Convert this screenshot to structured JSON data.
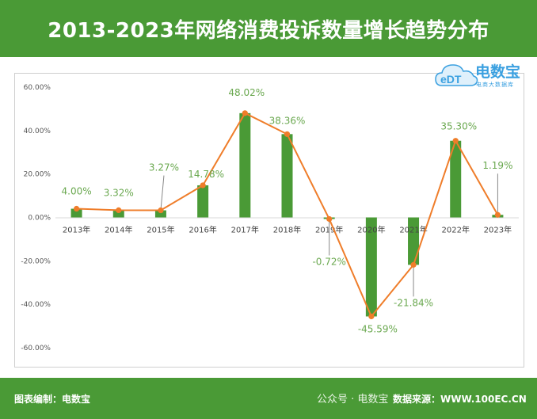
{
  "title": "2013-2023年网络消费投诉数量增长趋势分布",
  "logo": {
    "name": "电数宝",
    "sub": "电商大数据库",
    "mark": "eDT"
  },
  "footer": {
    "credit": "图表编制：电数宝",
    "watermark": "公众号 · 电数宝",
    "source": "数据来源：WWW.100EC.CN"
  },
  "colors": {
    "header": "#4a9a36",
    "bar": "#4a9a36",
    "line": "#ef7d2a",
    "label": "#6aa84f"
  },
  "chart_data": {
    "type": "bar+line",
    "categories": [
      "2013年",
      "2014年",
      "2015年",
      "2016年",
      "2017年",
      "2018年",
      "2019年",
      "2020年",
      "2021年",
      "2022年",
      "2023年"
    ],
    "values": [
      4.0,
      3.32,
      3.27,
      14.78,
      48.02,
      38.36,
      -0.72,
      -45.59,
      -21.84,
      35.3,
      1.19
    ],
    "value_labels": [
      "4.00%",
      "3.32%",
      "3.27%",
      "14.78%",
      "48.02%",
      "38.36%",
      "-0.72%",
      "-45.59%",
      "-21.84%",
      "35.30%",
      "1.19%"
    ],
    "yticks": [
      "60.00%",
      "40.00%",
      "20.00%",
      "0.00%",
      "-20.00%",
      "-40.00%",
      "-60.00%"
    ],
    "ylim": [
      -60,
      60
    ],
    "grid": false,
    "legend": "none"
  }
}
